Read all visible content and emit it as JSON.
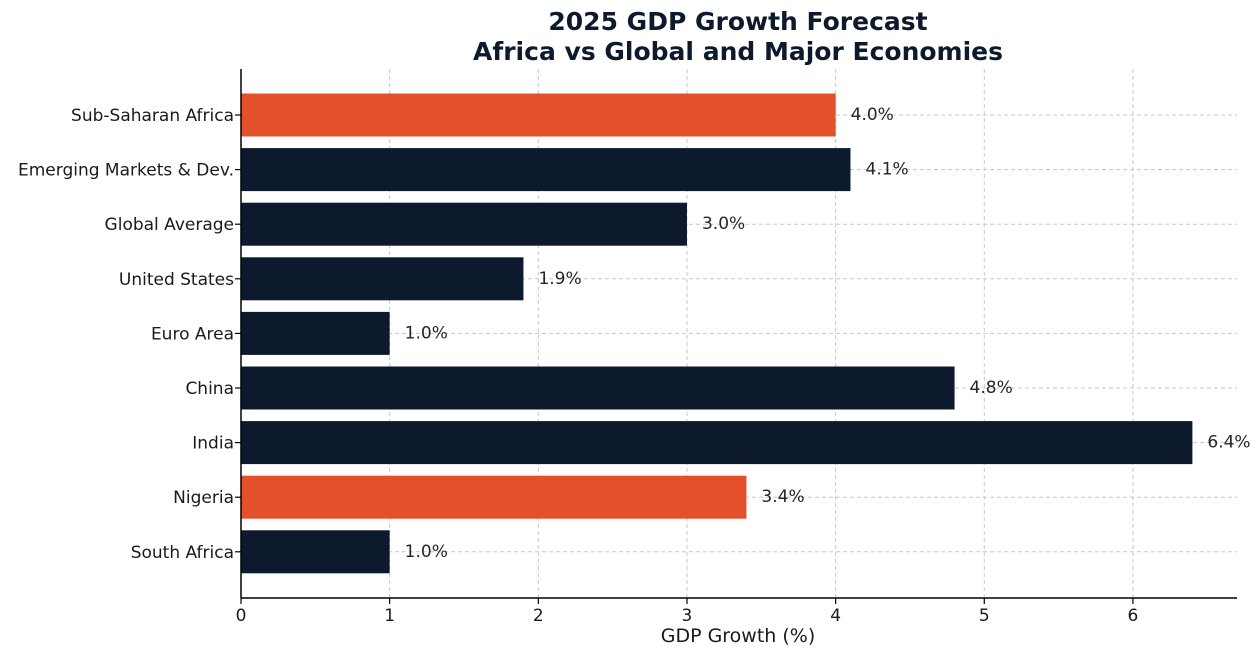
{
  "chart_data": {
    "type": "bar",
    "orientation": "horizontal",
    "title": "2025 GDP Growth Forecast",
    "subtitle": "Africa vs Global and Major Economies",
    "xlabel": "GDP Growth (%)",
    "ylabel": "",
    "xlim": [
      0,
      6.7
    ],
    "xticks": [
      0,
      1,
      2,
      3,
      4,
      5,
      6
    ],
    "grid": true,
    "categories": [
      "Sub-Saharan Africa",
      "Emerging Markets & Dev.",
      "Global Average",
      "United States",
      "Euro Area",
      "China",
      "India",
      "Nigeria",
      "South Africa"
    ],
    "values": [
      4.0,
      4.1,
      3.0,
      1.9,
      1.0,
      4.8,
      6.4,
      3.4,
      1.0
    ],
    "value_labels": [
      "4.0%",
      "4.1%",
      "3.0%",
      "1.9%",
      "1.0%",
      "4.8%",
      "6.4%",
      "3.4%",
      "1.0%"
    ],
    "highlighted": [
      true,
      false,
      false,
      false,
      false,
      false,
      false,
      true,
      false
    ],
    "colors": {
      "highlight": "#e4502c",
      "default": "#0d1a2d",
      "grid": "#c8c8c8",
      "axis": "#000000"
    }
  }
}
